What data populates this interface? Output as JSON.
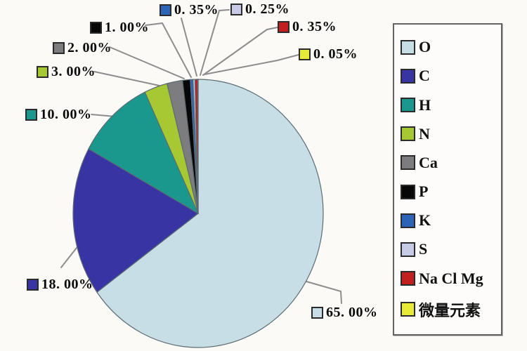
{
  "chart_data": {
    "type": "pie",
    "title": "",
    "legend_position": "right",
    "start_angle": "12-oclock",
    "direction": "clockwise",
    "unit": "%",
    "series": [
      {
        "label": "O",
        "value": 65.0,
        "display": "65. 00%",
        "color": "#c8dee6"
      },
      {
        "label": "C",
        "value": 18.0,
        "display": "18. 00%",
        "color": "#3934a4"
      },
      {
        "label": "H",
        "value": 10.0,
        "display": "10. 00%",
        "color": "#1b988e"
      },
      {
        "label": "N",
        "value": 3.0,
        "display": "3. 00%",
        "color": "#a6c832"
      },
      {
        "label": "Ca",
        "value": 2.0,
        "display": "2. 00%",
        "color": "#7d7d80"
      },
      {
        "label": "P",
        "value": 1.0,
        "display": "1. 00%",
        "color": "#070707"
      },
      {
        "label": "K",
        "value": 0.35,
        "display": "0. 35%",
        "color": "#2d64b8"
      },
      {
        "label": "S",
        "value": 0.25,
        "display": "0. 25%",
        "color": "#c6cae4"
      },
      {
        "label": "Na Cl Mg",
        "value": 0.35,
        "display": "0. 35%",
        "color": "#c22020"
      },
      {
        "label": "微量元素",
        "value": 0.05,
        "display": "0. 05%",
        "color": "#e6eb3a"
      }
    ]
  }
}
